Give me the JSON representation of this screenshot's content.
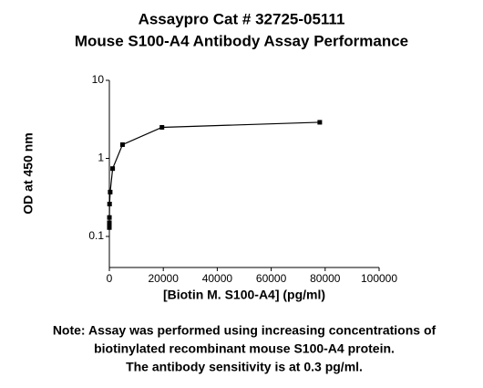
{
  "chart_data": {
    "type": "line",
    "title": [
      "Assaypro Cat # 32725-05111",
      "Mouse S100-A4 Antibody Assay Performance"
    ],
    "x_label": "[Biotin M. S100-A4] (pg/ml)",
    "y_label": "OD at 450 nm",
    "notes": [
      "Note: Assay was performed using increasing concentrations of",
      "biotinylated recombinant mouse S100-A4 protein.",
      "The antibody sensitivity is at 0.3 pg/ml."
    ],
    "x": [
      0,
      1.2,
      4.8,
      19,
      76,
      305,
      1219,
      4875,
      19500,
      78000
    ],
    "series": [
      {
        "color": "#000000",
        "values": [
          0.13,
          0.14,
          0.15,
          0.175,
          0.26,
          0.37,
          0.74,
          1.5,
          2.5,
          2.9
        ]
      }
    ],
    "xlim": [
      0,
      100000
    ],
    "xticks": [
      0,
      20000,
      40000,
      60000,
      80000,
      100000
    ],
    "ylim": [
      0.04,
      10
    ],
    "yticks": [
      0.1,
      1,
      10
    ],
    "ylog": true
  }
}
